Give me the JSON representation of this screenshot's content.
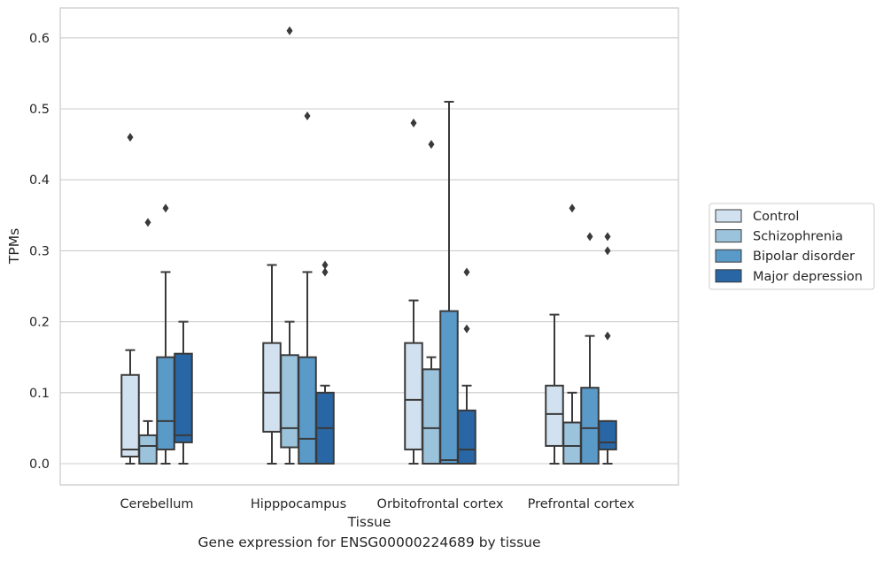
{
  "chart_data": {
    "type": "box",
    "caption": "Gene expression for ENSG00000224689 by tissue",
    "xlabel": "Tissue",
    "ylabel": "TPMs",
    "ylim": [
      -0.03,
      0.64
    ],
    "yticks": [
      0.0,
      0.1,
      0.2,
      0.3,
      0.4,
      0.5,
      0.6
    ],
    "ytick_labels": [
      "0.0",
      "0.1",
      "0.2",
      "0.3",
      "0.4",
      "0.5",
      "0.6"
    ],
    "grid": "horizontal",
    "legend_position": "right",
    "categories": [
      "Cerebellum",
      "Hipppocampus",
      "Orbitofrontal cortex",
      "Prefrontal cortex"
    ],
    "series": [
      {
        "name": "Control",
        "color": "#d1e1f0",
        "boxes": [
          {
            "whislo": 0.0,
            "q1": 0.01,
            "med": 0.02,
            "q3": 0.125,
            "whishi": 0.16,
            "fliers": [
              0.46
            ]
          },
          {
            "whislo": 0.0,
            "q1": 0.045,
            "med": 0.1,
            "q3": 0.17,
            "whishi": 0.28,
            "fliers": []
          },
          {
            "whislo": 0.0,
            "q1": 0.02,
            "med": 0.09,
            "q3": 0.17,
            "whishi": 0.23,
            "fliers": [
              0.48
            ]
          },
          {
            "whislo": 0.0,
            "q1": 0.025,
            "med": 0.07,
            "q3": 0.11,
            "whishi": 0.21,
            "fliers": []
          }
        ]
      },
      {
        "name": "Schizophrenia",
        "color": "#9cc3dc",
        "boxes": [
          {
            "whislo": 0.0,
            "q1": 0.0,
            "med": 0.025,
            "q3": 0.04,
            "whishi": 0.06,
            "fliers": [
              0.34
            ]
          },
          {
            "whislo": 0.0,
            "q1": 0.023,
            "med": 0.05,
            "q3": 0.153,
            "whishi": 0.2,
            "fliers": [
              0.61
            ]
          },
          {
            "whislo": 0.0,
            "q1": 0.0,
            "med": 0.05,
            "q3": 0.133,
            "whishi": 0.15,
            "fliers": [
              0.45
            ]
          },
          {
            "whislo": 0.0,
            "q1": 0.0,
            "med": 0.025,
            "q3": 0.058,
            "whishi": 0.1,
            "fliers": [
              0.36
            ]
          }
        ]
      },
      {
        "name": "Bipolar disorder",
        "color": "#5a9ac9",
        "boxes": [
          {
            "whislo": 0.0,
            "q1": 0.02,
            "med": 0.06,
            "q3": 0.15,
            "whishi": 0.27,
            "fliers": [
              0.36
            ]
          },
          {
            "whislo": 0.0,
            "q1": 0.0,
            "med": 0.035,
            "q3": 0.15,
            "whishi": 0.27,
            "fliers": [
              0.49
            ]
          },
          {
            "whislo": 0.0,
            "q1": 0.0,
            "med": 0.005,
            "q3": 0.215,
            "whishi": 0.51,
            "fliers": []
          },
          {
            "whislo": 0.0,
            "q1": 0.0,
            "med": 0.05,
            "q3": 0.107,
            "whishi": 0.18,
            "fliers": [
              0.32
            ]
          }
        ]
      },
      {
        "name": "Major depression",
        "color": "#2866a5",
        "boxes": [
          {
            "whislo": 0.0,
            "q1": 0.03,
            "med": 0.04,
            "q3": 0.155,
            "whishi": 0.2,
            "fliers": []
          },
          {
            "whislo": 0.0,
            "q1": 0.0,
            "med": 0.05,
            "q3": 0.1,
            "whishi": 0.11,
            "fliers": [
              0.27,
              0.28
            ]
          },
          {
            "whislo": 0.0,
            "q1": 0.0,
            "med": 0.02,
            "q3": 0.075,
            "whishi": 0.11,
            "fliers": [
              0.19,
              0.27
            ]
          },
          {
            "whislo": 0.0,
            "q1": 0.02,
            "med": 0.03,
            "q3": 0.06,
            "whishi": 0.06,
            "fliers": [
              0.18,
              0.3,
              0.32
            ]
          }
        ]
      }
    ]
  }
}
